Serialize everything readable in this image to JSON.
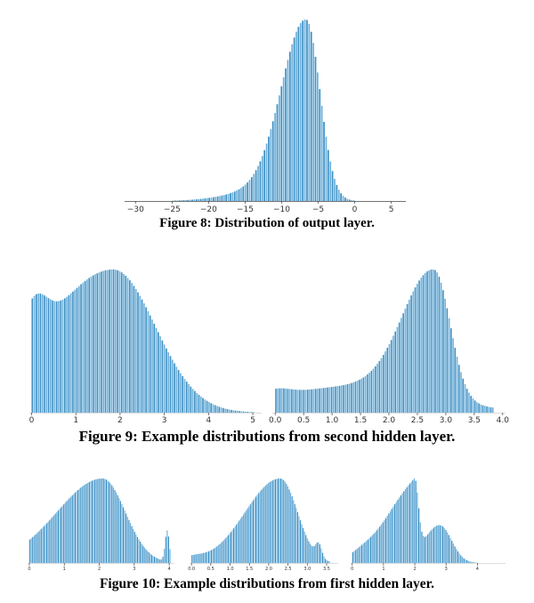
{
  "figures": [
    {
      "caption": "Figure 8: Distribution of output layer."
    },
    {
      "caption": "Figure 9: Example distributions from second hidden layer."
    },
    {
      "caption": "Figure 10: Example distributions from first hidden layer."
    }
  ],
  "colors": {
    "bar": "#3b8fc4",
    "bar_light": "#6fb0da",
    "axis": "#444444"
  },
  "chart_data": [
    {
      "type": "bar",
      "title": "",
      "xlabel": "",
      "ylabel": "",
      "xlim": [
        -31.5,
        7
      ],
      "ylim": [
        0,
        1
      ],
      "x_ticks": [
        -30,
        -25,
        -20,
        -15,
        -10,
        -5,
        0,
        5
      ],
      "x_tick_labels": [
        "−30",
        "−25",
        "−20",
        "−15",
        "−10",
        "−5",
        "0",
        "5"
      ],
      "bin_range": [
        -27,
        5
      ],
      "bins": 110,
      "shape": [
        {
          "m": -6.6,
          "a": 1.0,
          "sl": 3.3,
          "sr": 1.9
        },
        {
          "m": -12.0,
          "a": 0.06,
          "sl": 5.0,
          "sr": 3.0
        }
      ],
      "grid": false
    },
    {
      "type": "bar",
      "title": "",
      "xlabel": "",
      "ylabel": "",
      "xlim": [
        -0.05,
        5.2
      ],
      "ylim": [
        0,
        1
      ],
      "x_ticks": [
        0,
        1,
        2,
        3,
        4,
        5
      ],
      "x_tick_labels": [
        "0",
        "1",
        "2",
        "3",
        "4",
        "5"
      ],
      "bin_range": [
        0,
        5.05
      ],
      "bins": 110,
      "shape": [
        {
          "m": 1.85,
          "a": 1.0,
          "sl": 1.55,
          "sr": 0.95
        },
        {
          "m": 0.05,
          "a": 0.3,
          "sl": 0.3,
          "sr": 0.3
        }
      ],
      "grid": false
    },
    {
      "type": "bar",
      "title": "",
      "xlabel": "",
      "ylabel": "",
      "xlim": [
        -0.05,
        4.05
      ],
      "ylim": [
        0,
        1
      ],
      "x_ticks": [
        0.0,
        0.5,
        1.0,
        1.5,
        2.0,
        2.5,
        3.0,
        3.5,
        4.0
      ],
      "x_tick_labels": [
        "0.0",
        "0.5",
        "1.0",
        "1.5",
        "2.0",
        "2.5",
        "3.0",
        "3.5",
        "4.0"
      ],
      "bin_range": [
        0,
        3.85
      ],
      "bins": 110,
      "shape": [
        {
          "m": 2.8,
          "a": 0.9,
          "sl": 0.55,
          "sr": 0.28
        },
        {
          "m": 1.3,
          "a": 0.18,
          "sl": 1.4,
          "sr": 1.4
        },
        {
          "m": 0.0,
          "a": 0.05,
          "sl": 0.25,
          "sr": 0.25
        }
      ],
      "grid": false
    },
    {
      "type": "bar",
      "title": "",
      "xlabel": "",
      "ylabel": "",
      "xlim": [
        -0.05,
        4.15
      ],
      "ylim": [
        0,
        1
      ],
      "x_ticks": [
        0,
        1,
        2,
        3,
        4
      ],
      "x_tick_labels": [
        "0",
        "1",
        "2",
        "3",
        "4"
      ],
      "bin_range": [
        0,
        4.05
      ],
      "bins": 100,
      "shape": [
        {
          "m": 2.1,
          "a": 0.95,
          "sl": 1.3,
          "sr": 0.65
        },
        {
          "m": 3.95,
          "a": 0.35,
          "sl": 0.06,
          "sr": 0.06
        }
      ],
      "grid": false
    },
    {
      "type": "bar",
      "title": "",
      "xlabel": "",
      "ylabel": "",
      "xlim": [
        -0.05,
        3.8
      ],
      "ylim": [
        0,
        1
      ],
      "x_ticks": [
        0.0,
        0.5,
        1.0,
        1.5,
        2.0,
        2.5,
        3.0,
        3.5
      ],
      "x_tick_labels": [
        "0.0",
        "0.5",
        "1.0",
        "1.5",
        "2.0",
        "2.5",
        "3.0",
        "3.5"
      ],
      "bin_range": [
        0,
        3.6
      ],
      "bins": 100,
      "shape": [
        {
          "m": 2.3,
          "a": 0.95,
          "sl": 0.9,
          "sr": 0.45
        },
        {
          "m": 3.3,
          "a": 0.15,
          "sl": 0.08,
          "sr": 0.08
        },
        {
          "m": 0.0,
          "a": 0.05,
          "sl": 0.3,
          "sr": 0.3
        }
      ],
      "grid": false
    },
    {
      "type": "bar",
      "title": "",
      "xlabel": "",
      "ylabel": "",
      "xlim": [
        -0.05,
        4.9
      ],
      "ylim": [
        0,
        1
      ],
      "x_ticks": [
        0,
        1,
        2,
        3,
        4
      ],
      "x_tick_labels": [
        "0",
        "1",
        "2",
        "3",
        "4"
      ],
      "bin_range": [
        0,
        4.8
      ],
      "bins": 100,
      "shape": [
        {
          "m": 2.0,
          "a": 0.98,
          "sl": 0.9,
          "sr": 0.12
        },
        {
          "m": 2.8,
          "a": 0.5,
          "sl": 0.5,
          "sr": 0.38
        },
        {
          "m": 0.3,
          "a": 0.07,
          "sl": 0.4,
          "sr": 0.4
        }
      ],
      "grid": false
    }
  ]
}
